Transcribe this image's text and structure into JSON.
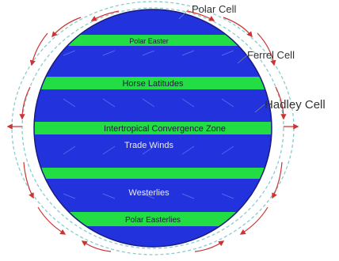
{
  "cells": {
    "polar": "Polar Cell",
    "ferrel": "Ferrel Cell",
    "hadley": "Hadley Cell"
  },
  "bands": {
    "polar_easterlies_top": "Polar Easter",
    "horse_latitudes": "Horse Latitudes",
    "itcz": "Intertropical Convergence Zone",
    "polar_easterlies_bottom": "Polar Easterlies"
  },
  "zones": {
    "trade_winds": "Trade Winds",
    "westerlies": "Westerlies"
  },
  "colors": {
    "ocean": "#2233dd",
    "band": "#22dd44",
    "arrow": "#cc3333",
    "circulation": "#88cccc"
  }
}
